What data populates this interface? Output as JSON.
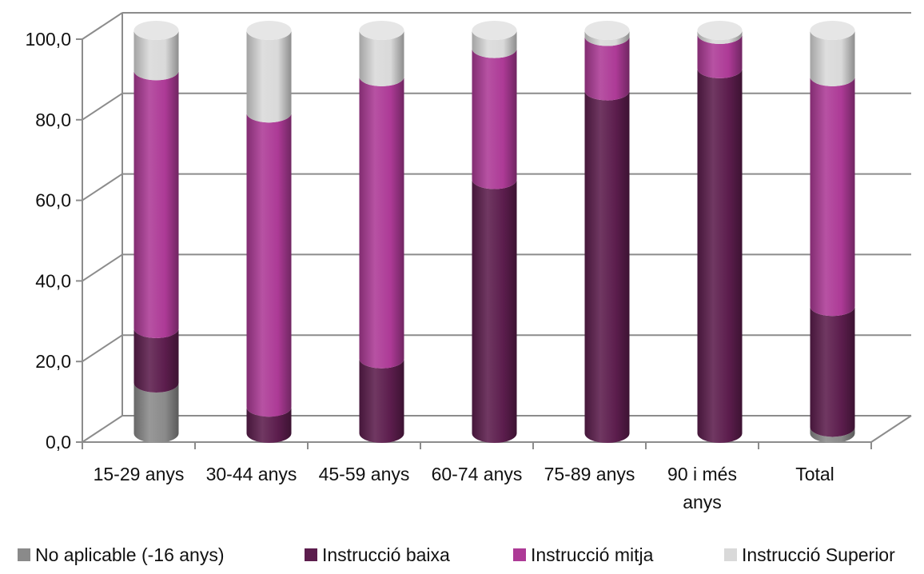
{
  "chart_data": {
    "type": "bar",
    "stacked": true,
    "style": "3d-cylinder",
    "categories": [
      [
        "15-29 anys"
      ],
      [
        "30-44 anys"
      ],
      [
        "45-59 anys"
      ],
      [
        "60-74 anys"
      ],
      [
        "75-89 anys"
      ],
      [
        "90 i més",
        "anys"
      ],
      [
        "Total"
      ]
    ],
    "series": [
      {
        "name": "No aplicable (-16 anys)",
        "color": "#8a8a8a",
        "values": [
          12.5,
          0,
          0,
          0,
          0,
          0,
          1.5
        ]
      },
      {
        "name": "Instrucció baixa",
        "color": "#5c1d4d",
        "values": [
          13.5,
          6.5,
          18.5,
          63.0,
          85.0,
          90.5,
          30.0
        ]
      },
      {
        "name": "Instrucció mitja",
        "color": "#ad3a96",
        "values": [
          64.0,
          73.0,
          70.0,
          32.5,
          13.5,
          8.5,
          57.0
        ]
      },
      {
        "name": "Instrucció Superior",
        "color": "#d9d9d9",
        "values": [
          10.0,
          20.5,
          11.5,
          4.5,
          1.5,
          1.0,
          11.5
        ]
      }
    ],
    "y_ticks": [
      "0,0",
      "20,0",
      "40,0",
      "60,0",
      "80,0",
      "100,0"
    ],
    "ylim": [
      0,
      100
    ],
    "grid": true,
    "legend": "bottom",
    "title": "",
    "xlabel": "",
    "ylabel": ""
  }
}
